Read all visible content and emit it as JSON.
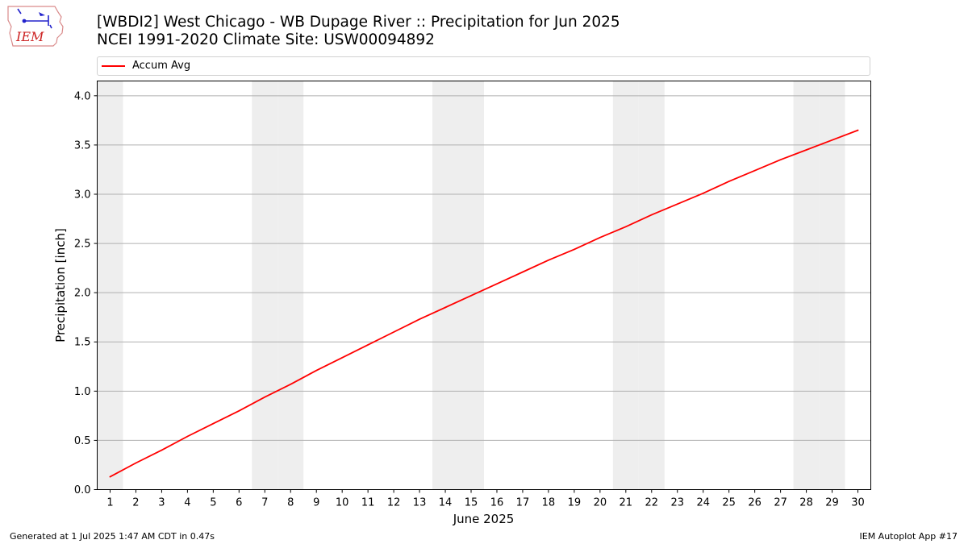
{
  "logo": {
    "text": "IEM",
    "icon": "iem-logo-iowa-weather-icon"
  },
  "header": {
    "title_line1": "[WBDI2] West Chicago - WB Dupage River :: Precipitation for Jun 2025",
    "title_line2": "NCEI 1991-2020 Climate Site: USW00094892"
  },
  "footer": {
    "generated": "Generated at 1 Jul 2025 1:47 AM CDT in 0.47s",
    "app": "IEM Autoplot App #17"
  },
  "colors": {
    "series": "#ff0000",
    "weekend_band": "#eeeeee",
    "grid": "#b0b0b0"
  },
  "chart_data": {
    "type": "line",
    "title": "[WBDI2] West Chicago - WB Dupage River :: Precipitation for Jun 2025",
    "subtitle": "NCEI 1991-2020 Climate Site: USW00094892",
    "xlabel": "June 2025",
    "ylabel": "Precipitation [inch]",
    "x": [
      1,
      2,
      3,
      4,
      5,
      6,
      7,
      8,
      9,
      10,
      11,
      12,
      13,
      14,
      15,
      16,
      17,
      18,
      19,
      20,
      21,
      22,
      23,
      24,
      25,
      26,
      27,
      28,
      29,
      30
    ],
    "xlim": [
      0.5,
      30.5
    ],
    "ylim": [
      0,
      4.15
    ],
    "yticks": [
      "0.0",
      "0.5",
      "1.0",
      "1.5",
      "2.0",
      "2.5",
      "3.0",
      "3.5",
      "4.0"
    ],
    "ytick_values": [
      0,
      0.5,
      1.0,
      1.5,
      2.0,
      2.5,
      3.0,
      3.5,
      4.0
    ],
    "grid": "horizontal",
    "legend_position": "top",
    "weekend_days": [
      1,
      7,
      8,
      14,
      15,
      21,
      22,
      28,
      29
    ],
    "series": [
      {
        "name": "Accum Avg",
        "values": [
          0.13,
          0.27,
          0.4,
          0.54,
          0.67,
          0.8,
          0.94,
          1.07,
          1.21,
          1.34,
          1.47,
          1.6,
          1.73,
          1.85,
          1.97,
          2.09,
          2.21,
          2.33,
          2.44,
          2.56,
          2.67,
          2.79,
          2.9,
          3.01,
          3.13,
          3.24,
          3.35,
          3.45,
          3.55,
          3.65
        ]
      }
    ]
  }
}
